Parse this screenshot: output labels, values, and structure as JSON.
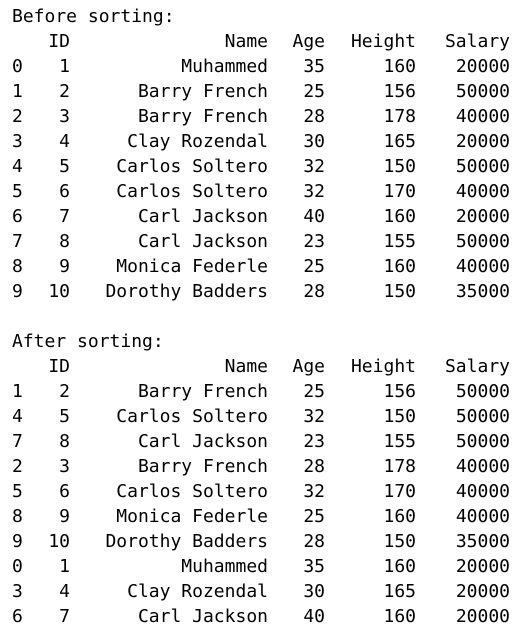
{
  "window": {
    "type": "console-output"
  },
  "sections": [
    {
      "title": "Before sorting:",
      "columns": [
        "ID",
        "Name",
        "Age",
        "Height",
        "Salary"
      ],
      "rows": [
        {
          "index": "0",
          "ID": "1",
          "Name": "Muhammed",
          "Age": "35",
          "Height": "160",
          "Salary": "20000"
        },
        {
          "index": "1",
          "ID": "2",
          "Name": "Barry French",
          "Age": "25",
          "Height": "156",
          "Salary": "50000"
        },
        {
          "index": "2",
          "ID": "3",
          "Name": "Barry French",
          "Age": "28",
          "Height": "178",
          "Salary": "40000"
        },
        {
          "index": "3",
          "ID": "4",
          "Name": "Clay Rozendal",
          "Age": "30",
          "Height": "165",
          "Salary": "20000"
        },
        {
          "index": "4",
          "ID": "5",
          "Name": "Carlos Soltero",
          "Age": "32",
          "Height": "150",
          "Salary": "50000"
        },
        {
          "index": "5",
          "ID": "6",
          "Name": "Carlos Soltero",
          "Age": "32",
          "Height": "170",
          "Salary": "40000"
        },
        {
          "index": "6",
          "ID": "7",
          "Name": "Carl Jackson",
          "Age": "40",
          "Height": "160",
          "Salary": "20000"
        },
        {
          "index": "7",
          "ID": "8",
          "Name": "Carl Jackson",
          "Age": "23",
          "Height": "155",
          "Salary": "50000"
        },
        {
          "index": "8",
          "ID": "9",
          "Name": "Monica Federle",
          "Age": "25",
          "Height": "160",
          "Salary": "40000"
        },
        {
          "index": "9",
          "ID": "10",
          "Name": "Dorothy Badders",
          "Age": "28",
          "Height": "150",
          "Salary": "35000"
        }
      ]
    },
    {
      "title": "After sorting:",
      "columns": [
        "ID",
        "Name",
        "Age",
        "Height",
        "Salary"
      ],
      "rows": [
        {
          "index": "1",
          "ID": "2",
          "Name": "Barry French",
          "Age": "25",
          "Height": "156",
          "Salary": "50000"
        },
        {
          "index": "4",
          "ID": "5",
          "Name": "Carlos Soltero",
          "Age": "32",
          "Height": "150",
          "Salary": "50000"
        },
        {
          "index": "7",
          "ID": "8",
          "Name": "Carl Jackson",
          "Age": "23",
          "Height": "155",
          "Salary": "50000"
        },
        {
          "index": "2",
          "ID": "3",
          "Name": "Barry French",
          "Age": "28",
          "Height": "178",
          "Salary": "40000"
        },
        {
          "index": "5",
          "ID": "6",
          "Name": "Carlos Soltero",
          "Age": "32",
          "Height": "170",
          "Salary": "40000"
        },
        {
          "index": "8",
          "ID": "9",
          "Name": "Monica Federle",
          "Age": "25",
          "Height": "160",
          "Salary": "40000"
        },
        {
          "index": "9",
          "ID": "10",
          "Name": "Dorothy Badders",
          "Age": "28",
          "Height": "150",
          "Salary": "35000"
        },
        {
          "index": "0",
          "ID": "1",
          "Name": "Muhammed",
          "Age": "35",
          "Height": "160",
          "Salary": "20000"
        },
        {
          "index": "3",
          "ID": "4",
          "Name": "Clay Rozendal",
          "Age": "30",
          "Height": "165",
          "Salary": "20000"
        },
        {
          "index": "6",
          "ID": "7",
          "Name": "Carl Jackson",
          "Age": "40",
          "Height": "160",
          "Salary": "20000"
        }
      ]
    }
  ]
}
